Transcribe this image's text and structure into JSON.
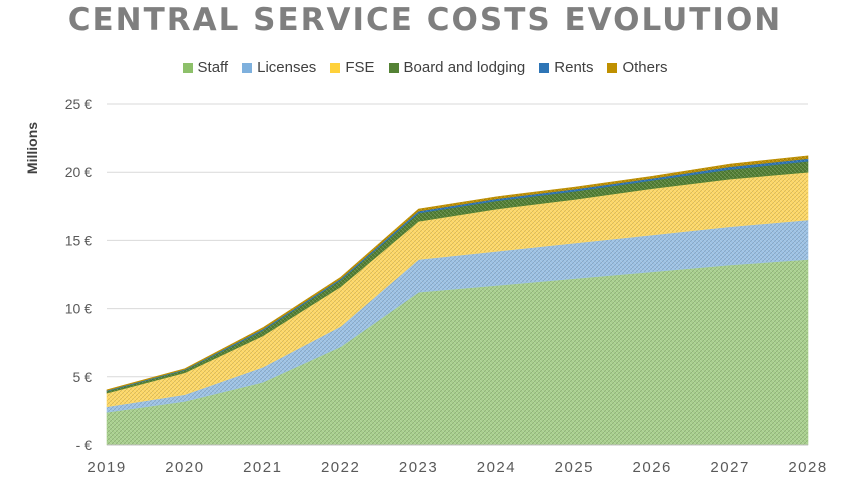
{
  "chart_data": {
    "type": "area",
    "stacked": true,
    "title": "CENTRAL SERVICE COSTS EVOLUTION",
    "ylabel": "Millions",
    "xlabel": "",
    "x": [
      "2019",
      "2020",
      "2021",
      "2022",
      "2023",
      "2024",
      "2025",
      "2026",
      "2027",
      "2028"
    ],
    "yticks": [
      "-  €",
      "5 €",
      "10 €",
      "15 €",
      "20 €",
      "25 €"
    ],
    "ylim": [
      0,
      25
    ],
    "grid": true,
    "legend_position": "top",
    "series": [
      {
        "name": "Staff",
        "color": "#a9d18e",
        "values": [
          2.4,
          3.2,
          4.6,
          7.2,
          11.2,
          11.7,
          12.2,
          12.7,
          13.2,
          13.6
        ]
      },
      {
        "name": "Licenses",
        "color": "#9dc3e6",
        "values": [
          0.4,
          0.5,
          1.1,
          1.5,
          2.4,
          2.5,
          2.6,
          2.7,
          2.8,
          2.9
        ]
      },
      {
        "name": "FSE",
        "color": "#ffd966",
        "values": [
          1.0,
          1.6,
          2.3,
          2.9,
          2.8,
          3.1,
          3.2,
          3.4,
          3.5,
          3.5
        ]
      },
      {
        "name": "Board and lodging",
        "color": "#548235",
        "values": [
          0.15,
          0.2,
          0.4,
          0.5,
          0.6,
          0.6,
          0.6,
          0.6,
          0.7,
          0.8
        ]
      },
      {
        "name": "Rents",
        "color": "#2e75b6",
        "values": [
          0.05,
          0.05,
          0.1,
          0.1,
          0.15,
          0.15,
          0.15,
          0.15,
          0.2,
          0.2
        ]
      },
      {
        "name": "Others",
        "color": "#bf9000",
        "values": [
          0.05,
          0.05,
          0.1,
          0.1,
          0.15,
          0.15,
          0.15,
          0.15,
          0.2,
          0.2
        ]
      }
    ]
  }
}
